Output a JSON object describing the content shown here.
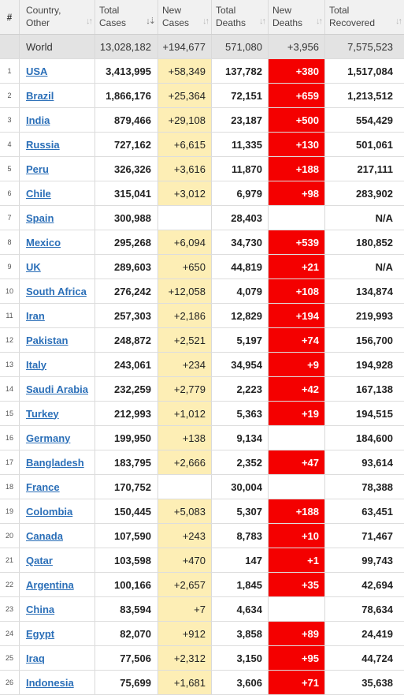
{
  "header": {
    "num": "#",
    "country": [
      "Country,",
      "Other"
    ],
    "total_cases": [
      "Total",
      "Cases"
    ],
    "new_cases": [
      "New",
      "Cases"
    ],
    "total_deaths": [
      "Total",
      "Deaths"
    ],
    "new_deaths": [
      "New",
      "Deaths"
    ],
    "total_recovered": [
      "Total",
      "Recovered"
    ]
  },
  "world": {
    "name": "World",
    "total_cases": "13,028,182",
    "new_cases": "+194,677",
    "total_deaths": "571,080",
    "new_deaths": "+3,956",
    "total_recovered": "7,575,523"
  },
  "colors": {
    "new_cases_bg": "#fdeeb5",
    "new_deaths_bg": "#f40000",
    "link": "#2b6fb8"
  },
  "rows": [
    {
      "n": "1",
      "country": "USA",
      "total_cases": "3,413,995",
      "new_cases": "+58,349",
      "total_deaths": "137,782",
      "new_deaths": "+380",
      "total_recovered": "1,517,084"
    },
    {
      "n": "2",
      "country": "Brazil",
      "total_cases": "1,866,176",
      "new_cases": "+25,364",
      "total_deaths": "72,151",
      "new_deaths": "+659",
      "total_recovered": "1,213,512"
    },
    {
      "n": "3",
      "country": "India",
      "total_cases": "879,466",
      "new_cases": "+29,108",
      "total_deaths": "23,187",
      "new_deaths": "+500",
      "total_recovered": "554,429"
    },
    {
      "n": "4",
      "country": "Russia",
      "total_cases": "727,162",
      "new_cases": "+6,615",
      "total_deaths": "11,335",
      "new_deaths": "+130",
      "total_recovered": "501,061"
    },
    {
      "n": "5",
      "country": "Peru",
      "total_cases": "326,326",
      "new_cases": "+3,616",
      "total_deaths": "11,870",
      "new_deaths": "+188",
      "total_recovered": "217,111"
    },
    {
      "n": "6",
      "country": "Chile",
      "total_cases": "315,041",
      "new_cases": "+3,012",
      "total_deaths": "6,979",
      "new_deaths": "+98",
      "total_recovered": "283,902"
    },
    {
      "n": "7",
      "country": "Spain",
      "total_cases": "300,988",
      "new_cases": "",
      "total_deaths": "28,403",
      "new_deaths": "",
      "total_recovered": "N/A"
    },
    {
      "n": "8",
      "country": "Mexico",
      "total_cases": "295,268",
      "new_cases": "+6,094",
      "total_deaths": "34,730",
      "new_deaths": "+539",
      "total_recovered": "180,852"
    },
    {
      "n": "9",
      "country": "UK",
      "total_cases": "289,603",
      "new_cases": "+650",
      "total_deaths": "44,819",
      "new_deaths": "+21",
      "total_recovered": "N/A"
    },
    {
      "n": "10",
      "country": "South Africa",
      "total_cases": "276,242",
      "new_cases": "+12,058",
      "total_deaths": "4,079",
      "new_deaths": "+108",
      "total_recovered": "134,874"
    },
    {
      "n": "11",
      "country": "Iran",
      "total_cases": "257,303",
      "new_cases": "+2,186",
      "total_deaths": "12,829",
      "new_deaths": "+194",
      "total_recovered": "219,993"
    },
    {
      "n": "12",
      "country": "Pakistan",
      "total_cases": "248,872",
      "new_cases": "+2,521",
      "total_deaths": "5,197",
      "new_deaths": "+74",
      "total_recovered": "156,700"
    },
    {
      "n": "13",
      "country": "Italy",
      "total_cases": "243,061",
      "new_cases": "+234",
      "total_deaths": "34,954",
      "new_deaths": "+9",
      "total_recovered": "194,928"
    },
    {
      "n": "14",
      "country": "Saudi Arabia",
      "total_cases": "232,259",
      "new_cases": "+2,779",
      "total_deaths": "2,223",
      "new_deaths": "+42",
      "total_recovered": "167,138"
    },
    {
      "n": "15",
      "country": "Turkey",
      "total_cases": "212,993",
      "new_cases": "+1,012",
      "total_deaths": "5,363",
      "new_deaths": "+19",
      "total_recovered": "194,515"
    },
    {
      "n": "16",
      "country": "Germany",
      "total_cases": "199,950",
      "new_cases": "+138",
      "total_deaths": "9,134",
      "new_deaths": "",
      "total_recovered": "184,600"
    },
    {
      "n": "17",
      "country": "Bangladesh",
      "total_cases": "183,795",
      "new_cases": "+2,666",
      "total_deaths": "2,352",
      "new_deaths": "+47",
      "total_recovered": "93,614"
    },
    {
      "n": "18",
      "country": "France",
      "total_cases": "170,752",
      "new_cases": "",
      "total_deaths": "30,004",
      "new_deaths": "",
      "total_recovered": "78,388"
    },
    {
      "n": "19",
      "country": "Colombia",
      "total_cases": "150,445",
      "new_cases": "+5,083",
      "total_deaths": "5,307",
      "new_deaths": "+188",
      "total_recovered": "63,451"
    },
    {
      "n": "20",
      "country": "Canada",
      "total_cases": "107,590",
      "new_cases": "+243",
      "total_deaths": "8,783",
      "new_deaths": "+10",
      "total_recovered": "71,467"
    },
    {
      "n": "21",
      "country": "Qatar",
      "total_cases": "103,598",
      "new_cases": "+470",
      "total_deaths": "147",
      "new_deaths": "+1",
      "total_recovered": "99,743"
    },
    {
      "n": "22",
      "country": "Argentina",
      "total_cases": "100,166",
      "new_cases": "+2,657",
      "total_deaths": "1,845",
      "new_deaths": "+35",
      "total_recovered": "42,694"
    },
    {
      "n": "23",
      "country": "China",
      "total_cases": "83,594",
      "new_cases": "+7",
      "total_deaths": "4,634",
      "new_deaths": "",
      "total_recovered": "78,634"
    },
    {
      "n": "24",
      "country": "Egypt",
      "total_cases": "82,070",
      "new_cases": "+912",
      "total_deaths": "3,858",
      "new_deaths": "+89",
      "total_recovered": "24,419"
    },
    {
      "n": "25",
      "country": "Iraq",
      "total_cases": "77,506",
      "new_cases": "+2,312",
      "total_deaths": "3,150",
      "new_deaths": "+95",
      "total_recovered": "44,724"
    },
    {
      "n": "26",
      "country": "Indonesia",
      "total_cases": "75,699",
      "new_cases": "+1,681",
      "total_deaths": "3,606",
      "new_deaths": "+71",
      "total_recovered": "35,638"
    }
  ]
}
